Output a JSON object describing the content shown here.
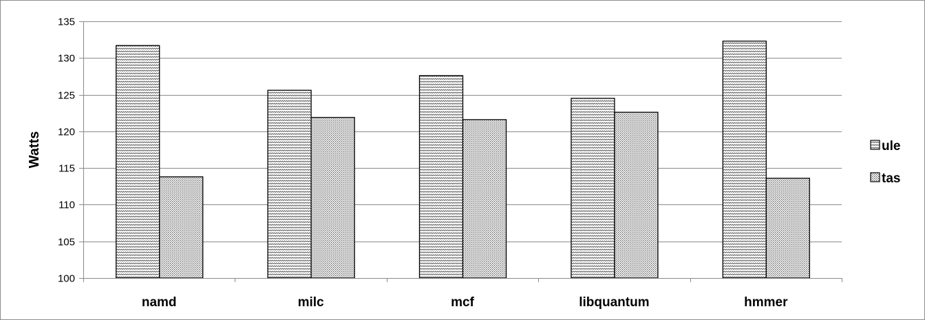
{
  "chart_data": {
    "type": "bar",
    "title": "",
    "xlabel": "",
    "ylabel": "Watts",
    "ylim": [
      100,
      135
    ],
    "yticks": [
      100,
      105,
      110,
      115,
      120,
      125,
      130,
      135
    ],
    "grid": true,
    "legend_position": "right",
    "categories": [
      "namd",
      "milc",
      "mcf",
      "libquantum",
      "hmmer"
    ],
    "series": [
      {
        "name": "ule",
        "pattern": "wave",
        "values": [
          131.7,
          125.6,
          127.6,
          124.5,
          132.3
        ]
      },
      {
        "name": "tas",
        "pattern": "dots",
        "values": [
          113.8,
          121.9,
          121.6,
          122.6,
          113.6
        ]
      }
    ]
  }
}
